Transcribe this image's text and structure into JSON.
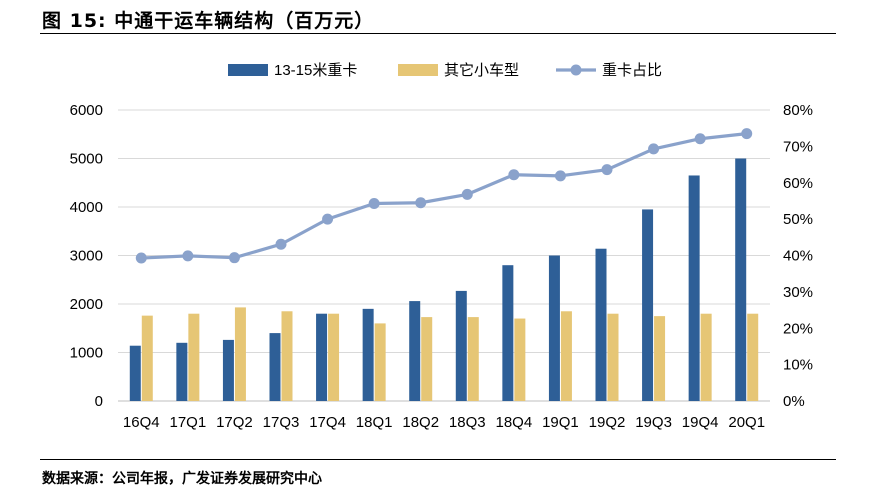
{
  "figure": {
    "title": "图 15: 中通干运车辆结构（百万元）",
    "source": "数据来源：公司年报，广发证券发展研究中心"
  },
  "colors": {
    "bar1": "#2e5f97",
    "bar2": "#e6c675",
    "line": "#8aa2cb",
    "grid": "#d9d9d9",
    "axis": "#bfbfbf"
  },
  "chart_data": {
    "type": "bar",
    "categories": [
      "16Q4",
      "17Q1",
      "17Q2",
      "17Q3",
      "17Q4",
      "18Q1",
      "18Q2",
      "18Q3",
      "18Q4",
      "19Q1",
      "19Q2",
      "19Q3",
      "19Q4",
      "20Q1"
    ],
    "series": [
      {
        "name": "13-15米重卡",
        "type": "bar",
        "axis": "left",
        "values": [
          1140,
          1200,
          1260,
          1400,
          1800,
          1900,
          2060,
          2270,
          2800,
          3000,
          3140,
          3950,
          4650,
          5000
        ]
      },
      {
        "name": "其它小车型",
        "type": "bar",
        "axis": "left",
        "values": [
          1760,
          1800,
          1930,
          1850,
          1800,
          1600,
          1730,
          1730,
          1700,
          1850,
          1800,
          1750,
          1800,
          1800
        ]
      },
      {
        "name": "重卡占比",
        "type": "line",
        "axis": "right",
        "values": [
          39.3,
          39.9,
          39.4,
          43.1,
          50.0,
          54.3,
          54.5,
          56.8,
          62.2,
          61.9,
          63.6,
          69.3,
          72.1,
          73.5
        ]
      }
    ],
    "ylim": [
      0,
      6000
    ],
    "yticks": [
      "0",
      "1000",
      "2000",
      "3000",
      "4000",
      "5000",
      "6000"
    ],
    "y2lim": [
      0,
      80
    ],
    "y2ticks": [
      "0%",
      "10%",
      "20%",
      "30%",
      "40%",
      "50%",
      "60%",
      "70%",
      "80%"
    ],
    "legend_position": "top-center",
    "grid": true
  }
}
